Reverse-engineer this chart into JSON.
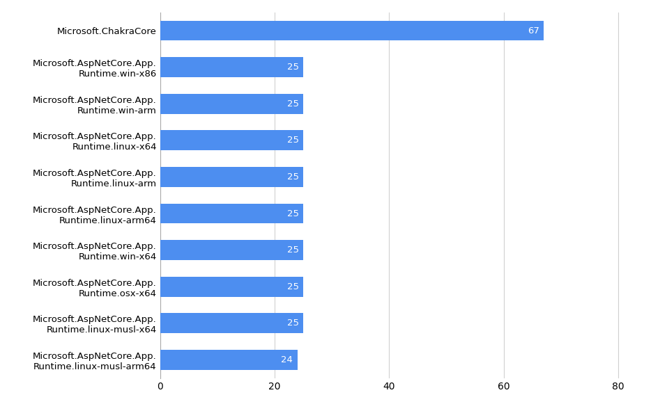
{
  "categories": [
    "Microsoft.AspNetCore.App.\nRuntime.linux-musl-arm64",
    "Microsoft.AspNetCore.App.\nRuntime.linux-musl-x64",
    "Microsoft.AspNetCore.App.\nRuntime.osx-x64",
    "Microsoft.AspNetCore.App.\nRuntime.win-x64",
    "Microsoft.AspNetCore.App.\nRuntime.linux-arm64",
    "Microsoft.AspNetCore.App.\nRuntime.linux-arm",
    "Microsoft.AspNetCore.App.\nRuntime.linux-x64",
    "Microsoft.AspNetCore.App.\nRuntime.win-arm",
    "Microsoft.AspNetCore.App.\nRuntime.win-x86",
    "Microsoft.ChakraCore"
  ],
  "values": [
    24,
    25,
    25,
    25,
    25,
    25,
    25,
    25,
    25,
    67
  ],
  "bar_color": "#4d8ef0",
  "label_color": "#ffffff",
  "background_color": "#ffffff",
  "grid_color": "#d0d0d0",
  "xlim": [
    0,
    85
  ],
  "xticks": [
    0,
    20,
    40,
    60,
    80
  ],
  "bar_height": 0.55,
  "label_fontsize": 9.5,
  "tick_fontsize": 10,
  "value_fontsize": 9.5
}
